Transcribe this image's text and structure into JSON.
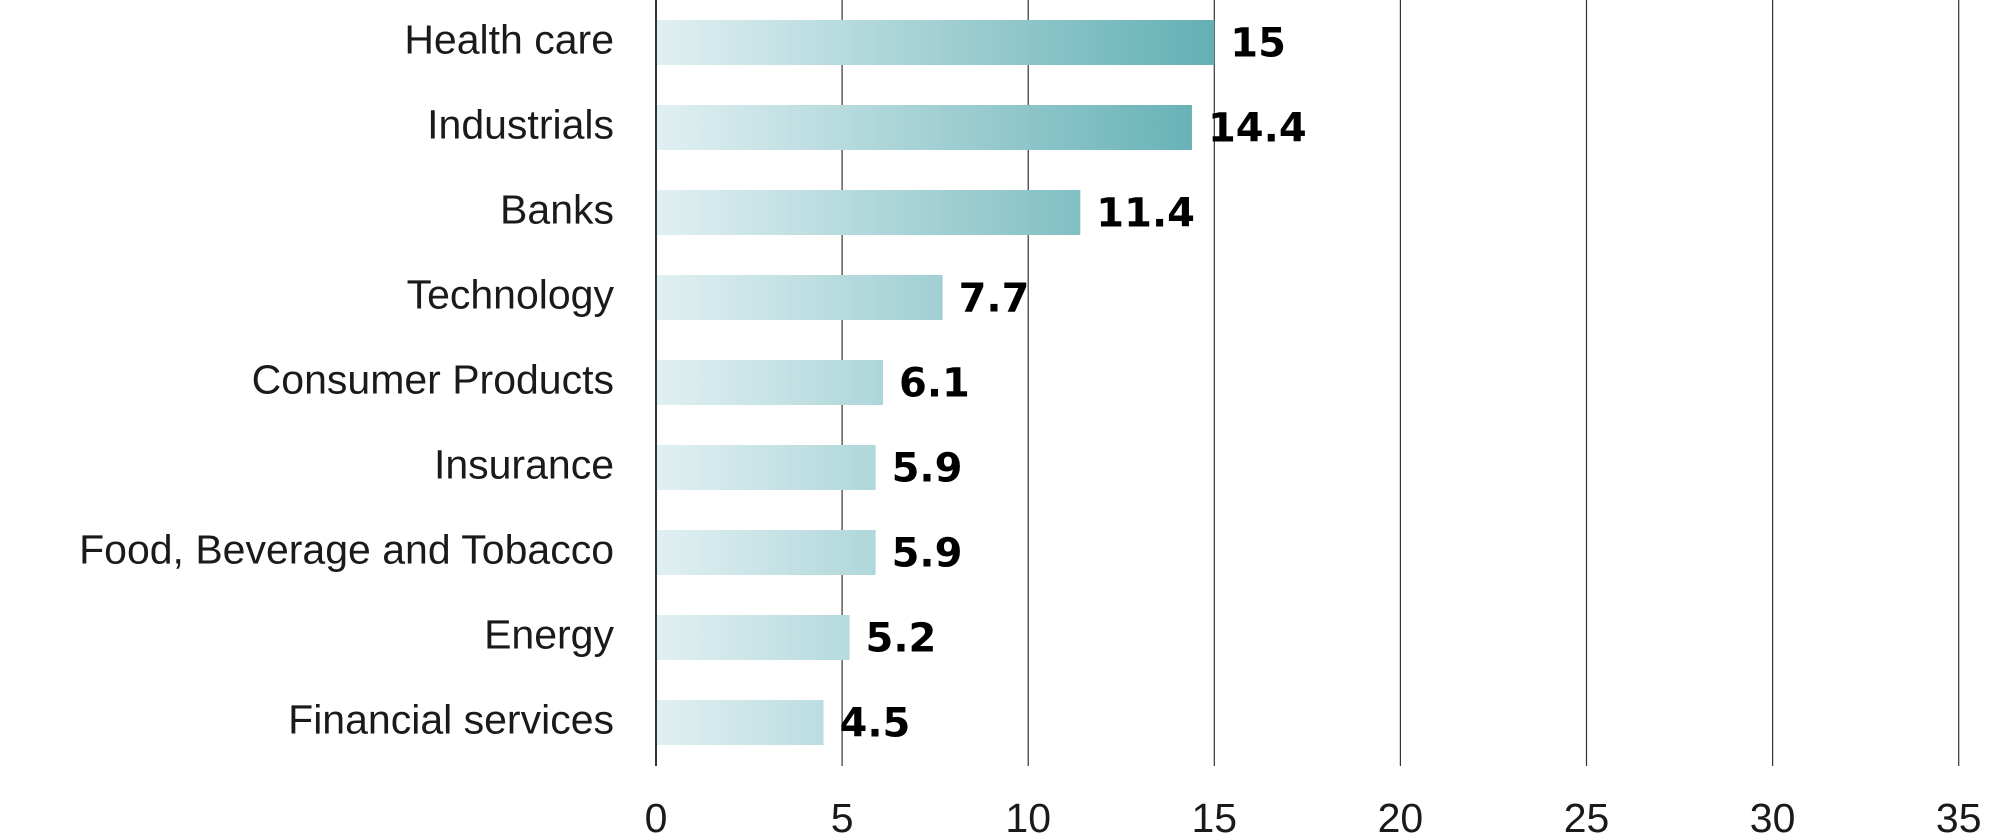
{
  "chart_data": {
    "type": "bar",
    "orientation": "horizontal",
    "categories": [
      "Health care",
      "Industrials",
      "Banks",
      "Technology",
      "Consumer Products",
      "Insurance",
      "Food, Beverage and Tobacco",
      "Energy",
      "Financial services"
    ],
    "values": [
      15,
      14.4,
      11.4,
      7.7,
      6.1,
      5.9,
      5.9,
      5.2,
      4.5
    ],
    "value_labels": [
      "15",
      "14.4",
      "11.4",
      "7.7",
      "6.1",
      "5.9",
      "5.9",
      "5.2",
      "4.5"
    ],
    "xlim": [
      0,
      35
    ],
    "xticks": [
      0,
      5,
      10,
      15,
      20,
      25,
      30,
      35
    ],
    "grid": "vertical",
    "title": "",
    "xlabel": "",
    "ylabel": "",
    "colors": {
      "bar_start": "#e1f0f2",
      "bar_end": "#63b0b5",
      "grid": "#333333",
      "text": "#1a1a1a"
    }
  }
}
